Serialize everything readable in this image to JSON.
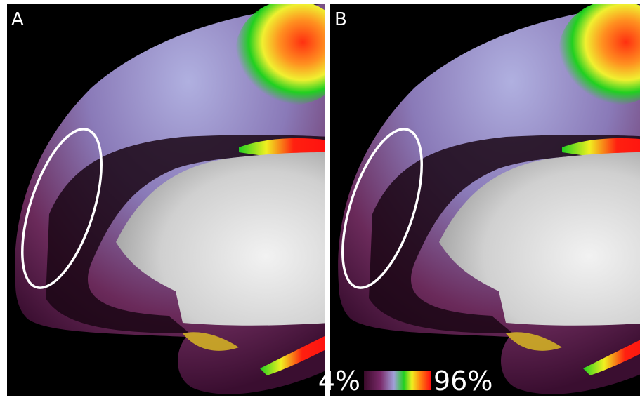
{
  "panels": [
    {
      "label": "A"
    },
    {
      "label": "B"
    }
  ],
  "colorbar": {
    "min_label": "4%",
    "max_label": "96%"
  }
}
